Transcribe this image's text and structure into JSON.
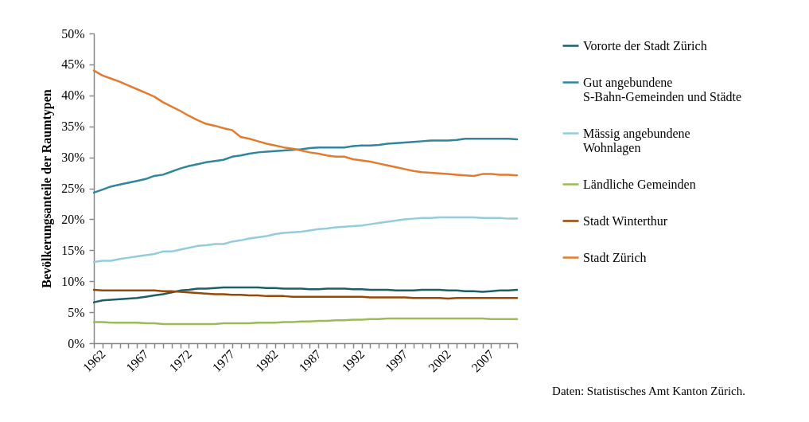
{
  "chart_data": {
    "type": "line",
    "ylabel": "Bevölkerungsanteile der Raumtypen",
    "annotations": [
      "Daten: Statistisches Amt Kanton Zürich."
    ],
    "categories": [
      "1962",
      null,
      null,
      null,
      null,
      "1967",
      null,
      null,
      null,
      null,
      "1972",
      null,
      null,
      null,
      null,
      "1977",
      null,
      null,
      null,
      null,
      "1982",
      null,
      null,
      null,
      null,
      "1987",
      null,
      null,
      null,
      null,
      "1992",
      null,
      null,
      null,
      null,
      "1997",
      null,
      null,
      null,
      null,
      "2002",
      null,
      null,
      null,
      null,
      "2007",
      null,
      null,
      null,
      null
    ],
    "ylim": [
      0,
      50
    ],
    "yticks": [
      {
        "value": 0,
        "label": "0%"
      },
      {
        "value": 5,
        "label": "5%"
      },
      {
        "value": 10,
        "label": "10%"
      },
      {
        "value": 15,
        "label": "15%"
      },
      {
        "value": 20,
        "label": "20%"
      },
      {
        "value": 25,
        "label": "25%"
      },
      {
        "value": 30,
        "label": "30%"
      },
      {
        "value": 35,
        "label": "35%"
      },
      {
        "value": 40,
        "label": "40%"
      },
      {
        "value": 45,
        "label": "45%"
      },
      {
        "value": 50,
        "label": "50%"
      }
    ],
    "grid": false,
    "legend": "right",
    "marker": "none",
    "line_style": "solid",
    "series": [
      {
        "name": "Vororte der Stadt Zürich",
        "color": "#1f5d6b",
        "values": [
          6.6,
          6.9,
          7.0,
          7.1,
          7.2,
          7.3,
          7.5,
          7.7,
          7.9,
          8.2,
          8.5,
          8.6,
          8.8,
          8.8,
          8.9,
          9.0,
          9.0,
          9.0,
          9.0,
          9.0,
          8.9,
          8.9,
          8.8,
          8.8,
          8.8,
          8.7,
          8.7,
          8.8,
          8.8,
          8.8,
          8.7,
          8.7,
          8.6,
          8.6,
          8.6,
          8.5,
          8.5,
          8.5,
          8.6,
          8.6,
          8.6,
          8.5,
          8.5,
          8.4,
          8.4,
          8.3,
          8.4,
          8.5,
          8.5,
          8.6
        ]
      },
      {
        "name": "Gut angebundene S-Bahn-Gemeinden und Städte",
        "color": "#31859c",
        "values": [
          24.3,
          24.8,
          25.3,
          25.6,
          25.9,
          26.2,
          26.5,
          27.0,
          27.2,
          27.7,
          28.2,
          28.6,
          28.9,
          29.2,
          29.4,
          29.6,
          30.1,
          30.3,
          30.6,
          30.8,
          30.9,
          31.0,
          31.1,
          31.2,
          31.3,
          31.5,
          31.6,
          31.6,
          31.6,
          31.6,
          31.8,
          31.9,
          31.9,
          32.0,
          32.2,
          32.3,
          32.4,
          32.5,
          32.6,
          32.7,
          32.7,
          32.7,
          32.8,
          33.0,
          33.0,
          33.0,
          33.0,
          33.0,
          33.0,
          32.9
        ]
      },
      {
        "name": "Mässig angebundene Wohnlagen",
        "color": "#93cddd",
        "values": [
          13.1,
          13.3,
          13.3,
          13.6,
          13.8,
          14.0,
          14.2,
          14.4,
          14.8,
          14.8,
          15.1,
          15.4,
          15.7,
          15.8,
          16.0,
          16.0,
          16.4,
          16.6,
          16.9,
          17.1,
          17.3,
          17.6,
          17.8,
          17.9,
          18.0,
          18.2,
          18.4,
          18.5,
          18.7,
          18.8,
          18.9,
          19.0,
          19.2,
          19.4,
          19.6,
          19.8,
          20.0,
          20.1,
          20.2,
          20.2,
          20.3,
          20.3,
          20.3,
          20.3,
          20.3,
          20.2,
          20.2,
          20.2,
          20.1,
          20.1
        ]
      },
      {
        "name": "Ländliche Gemeinden",
        "color": "#9bbb59",
        "values": [
          3.4,
          3.4,
          3.3,
          3.3,
          3.3,
          3.3,
          3.2,
          3.2,
          3.1,
          3.1,
          3.1,
          3.1,
          3.1,
          3.1,
          3.1,
          3.2,
          3.2,
          3.2,
          3.2,
          3.3,
          3.3,
          3.3,
          3.4,
          3.4,
          3.5,
          3.5,
          3.6,
          3.6,
          3.7,
          3.7,
          3.8,
          3.8,
          3.9,
          3.9,
          4.0,
          4.0,
          4.0,
          4.0,
          4.0,
          4.0,
          4.0,
          4.0,
          4.0,
          4.0,
          4.0,
          4.0,
          3.9,
          3.9,
          3.9,
          3.9
        ]
      },
      {
        "name": "Stadt Winterthur",
        "color": "#984807",
        "values": [
          8.6,
          8.5,
          8.5,
          8.5,
          8.5,
          8.5,
          8.5,
          8.5,
          8.4,
          8.4,
          8.3,
          8.2,
          8.1,
          8.0,
          7.9,
          7.9,
          7.8,
          7.8,
          7.7,
          7.7,
          7.6,
          7.6,
          7.6,
          7.5,
          7.5,
          7.5,
          7.5,
          7.5,
          7.5,
          7.5,
          7.5,
          7.5,
          7.4,
          7.4,
          7.4,
          7.4,
          7.4,
          7.3,
          7.3,
          7.3,
          7.3,
          7.2,
          7.3,
          7.3,
          7.3,
          7.3,
          7.3,
          7.3,
          7.3,
          7.3
        ]
      },
      {
        "name": "Stadt Zürich",
        "color": "#e37b2f",
        "values": [
          44.0,
          43.2,
          42.7,
          42.2,
          41.6,
          41.0,
          40.4,
          39.8,
          38.9,
          38.2,
          37.5,
          36.7,
          36.0,
          35.4,
          35.1,
          34.7,
          34.4,
          33.3,
          33.0,
          32.6,
          32.2,
          31.9,
          31.6,
          31.4,
          31.1,
          30.8,
          30.6,
          30.3,
          30.1,
          30.1,
          29.7,
          29.5,
          29.3,
          29.0,
          28.7,
          28.4,
          28.1,
          27.8,
          27.6,
          27.5,
          27.4,
          27.3,
          27.2,
          27.1,
          27.0,
          27.3,
          27.3,
          27.2,
          27.2,
          27.1
        ]
      }
    ]
  }
}
